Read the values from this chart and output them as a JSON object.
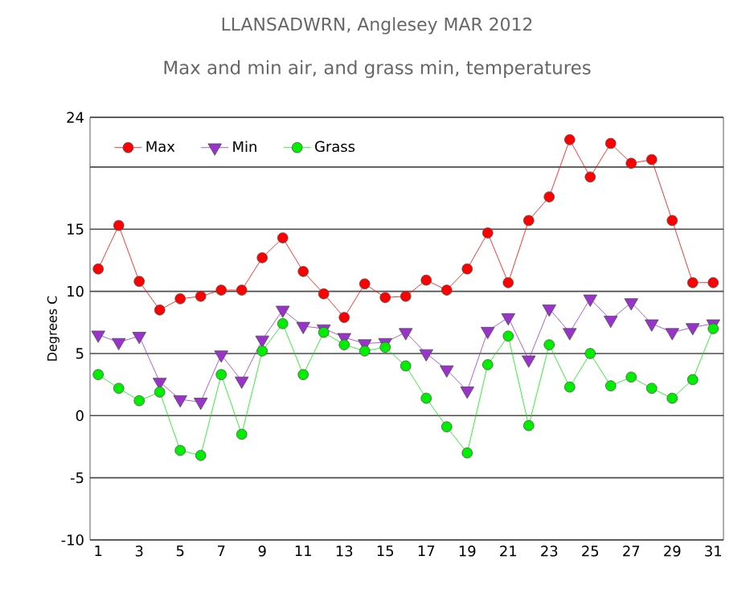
{
  "chart_data": {
    "type": "line",
    "title": "LLANSADWRN, Anglesey MAR 2012",
    "subtitle": "Max and min air, and grass min, temperatures",
    "ylabel": "Degrees C",
    "x": [
      1,
      2,
      3,
      4,
      5,
      6,
      7,
      8,
      9,
      10,
      11,
      12,
      13,
      14,
      15,
      16,
      17,
      18,
      19,
      20,
      21,
      22,
      23,
      24,
      25,
      26,
      27,
      28,
      29,
      30,
      31
    ],
    "series": [
      {
        "name": "Max",
        "color": "#ff0000",
        "marker": "circle",
        "values": [
          11.8,
          15.3,
          10.8,
          8.5,
          9.4,
          9.6,
          10.1,
          10.1,
          12.7,
          14.3,
          11.6,
          9.8,
          7.9,
          10.6,
          9.5,
          9.6,
          10.9,
          10.1,
          11.8,
          14.7,
          10.7,
          15.7,
          17.6,
          22.2,
          19.2,
          21.9,
          20.3,
          20.6,
          15.7,
          10.7,
          10.7
        ]
      },
      {
        "name": "Min",
        "color": "#9933cc",
        "marker": "triangle",
        "values": [
          6.5,
          5.9,
          6.4,
          2.7,
          1.3,
          1.1,
          4.9,
          2.8,
          6.1,
          8.5,
          7.2,
          7.0,
          6.3,
          5.8,
          5.9,
          6.7,
          5.0,
          3.7,
          2.0,
          6.8,
          7.9,
          4.5,
          8.6,
          6.7,
          9.4,
          7.7,
          9.1,
          7.4,
          6.7,
          7.1,
          7.4
        ]
      },
      {
        "name": "Grass",
        "color": "#00ee00",
        "marker": "circle",
        "values": [
          3.3,
          2.2,
          1.2,
          1.9,
          -2.8,
          -3.2,
          3.3,
          -1.5,
          5.2,
          7.4,
          3.3,
          6.7,
          5.7,
          5.2,
          5.5,
          4.0,
          1.4,
          -0.9,
          -3.0,
          4.1,
          6.4,
          -0.8,
          5.7,
          2.3,
          5.0,
          2.4,
          3.1,
          2.2,
          1.4,
          2.9,
          7.0
        ]
      }
    ],
    "xlim": [
      0.6,
      31.5
    ],
    "xticks": [
      1,
      3,
      5,
      7,
      9,
      11,
      13,
      15,
      17,
      19,
      21,
      23,
      25,
      27,
      29,
      31
    ],
    "ylim": [
      -10,
      24
    ],
    "yticks": [
      -10,
      -5,
      0,
      5,
      10,
      15,
      {
        "value": 20,
        "label": null
      },
      24
    ],
    "grid": "y",
    "legend": "top left"
  }
}
